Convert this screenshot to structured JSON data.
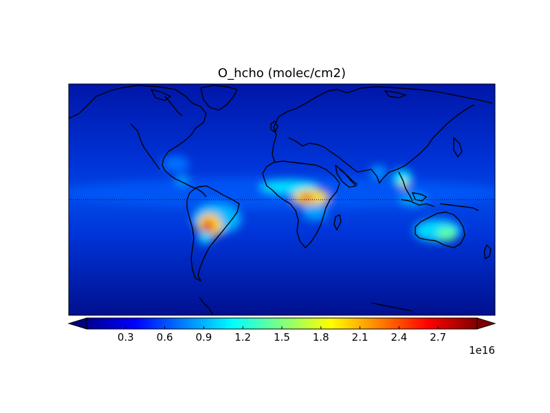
{
  "title": "O_hcho (molec/cm2)",
  "colorbar": {
    "ticks": [
      "0.3",
      "0.6",
      "0.9",
      "1.2",
      "1.5",
      "1.8",
      "2.1",
      "2.4",
      "2.7"
    ],
    "tick_values": [
      0.3,
      0.6,
      0.9,
      1.2,
      1.5,
      1.8,
      2.1,
      2.4,
      2.7
    ],
    "min": 0.0,
    "max": 3.0,
    "exponent_label": "1e16",
    "colormap": "jet",
    "extend": "both"
  },
  "map": {
    "projection": "cylindrical",
    "lon_range": [
      -180,
      180
    ],
    "lat_range": [
      -90,
      90
    ],
    "background_color": "#0033d0",
    "equator_line": true,
    "coastlines": true
  }
}
